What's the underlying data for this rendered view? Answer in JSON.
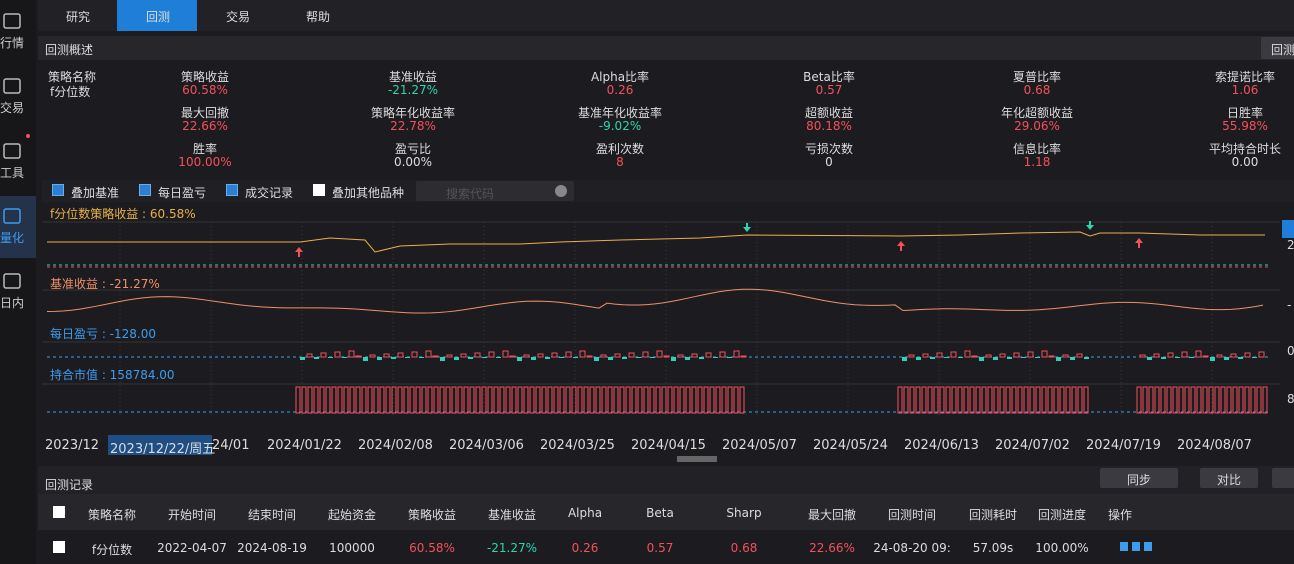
{
  "sidebar": [
    "行情",
    "交易",
    "工具",
    "量化",
    "日内"
  ],
  "tabs": [
    "研究",
    "回测",
    "交易",
    "帮助"
  ],
  "overview": {
    "title": "回测概述",
    "button": "回测",
    "name_label": "策略名称",
    "name": "f分位数",
    "stats": [
      {
        "label": "策略收益",
        "value": "60.58%"
      },
      {
        "label": "基准收益",
        "value": "-21.27%"
      },
      {
        "label": "Alpha比率",
        "value": "0.26"
      },
      {
        "label": "Beta比率",
        "value": "0.57"
      },
      {
        "label": "夏普比率",
        "value": "0.68"
      },
      {
        "label": "索提诺比率",
        "value": "1.06"
      },
      {
        "label": "最大回撤",
        "value": "22.66%"
      },
      {
        "label": "策略年化收益率",
        "value": "22.78%"
      },
      {
        "label": "基准年化收益率",
        "value": "-9.02%"
      },
      {
        "label": "超额收益",
        "value": "80.18%"
      },
      {
        "label": "年化超额收益",
        "value": "29.06%"
      },
      {
        "label": "日胜率",
        "value": "55.98%"
      },
      {
        "label": "胜率",
        "value": "100.00%"
      },
      {
        "label": "盈亏比",
        "value": "0.00%"
      },
      {
        "label": "盈利次数",
        "value": "8"
      },
      {
        "label": "亏损次数",
        "value": "0"
      },
      {
        "label": "信息比率",
        "value": "1.18"
      },
      {
        "label": "平均持合时长",
        "value": "0.00"
      }
    ]
  },
  "options": [
    {
      "label": "叠加基准",
      "checked": true
    },
    {
      "label": "每日盈亏",
      "checked": true
    },
    {
      "label": "成交记录",
      "checked": true
    },
    {
      "label": "叠加其他品种",
      "checked": false
    }
  ],
  "search_placeholder": "搜索代码",
  "panels": [
    {
      "label": "f分位数策略收益 : 60.58%",
      "axis_label": "2"
    },
    {
      "label": "基准收益 : -21.27%",
      "axis_label": "-"
    },
    {
      "label": "每日盈亏 : -128.00",
      "axis_label": "0"
    },
    {
      "label": "持合市值 : 158784.00",
      "axis_label": "8"
    }
  ],
  "dates": [
    "2023/12",
    "2023/12/22/周五",
    "24/01",
    "2024/01/22",
    "2024/02/08",
    "2024/03/06",
    "2024/03/25",
    "2024/04/15",
    "2024/05/07",
    "2024/05/24",
    "2024/06/13",
    "2024/07/02",
    "2024/07/19",
    "2024/08/07"
  ],
  "records": {
    "title": "回测记录",
    "buttons": [
      "同步",
      "对比"
    ],
    "columns": [
      "策略名称",
      "开始时间",
      "结束时间",
      "起始资金",
      "策略收益",
      "基准收益",
      "Alpha",
      "Beta",
      "Sharp",
      "最大回撤",
      "回测时间",
      "回测耗时",
      "回测进度",
      "操作"
    ],
    "rows": [
      [
        "f分位数",
        "2022-04-07",
        "2024-08-19",
        "100000",
        "60.58%",
        "-21.27%",
        "0.26",
        "0.57",
        "0.68",
        "22.66%",
        "24-08-20 09:",
        "57.09s",
        "100.00%"
      ]
    ]
  }
}
